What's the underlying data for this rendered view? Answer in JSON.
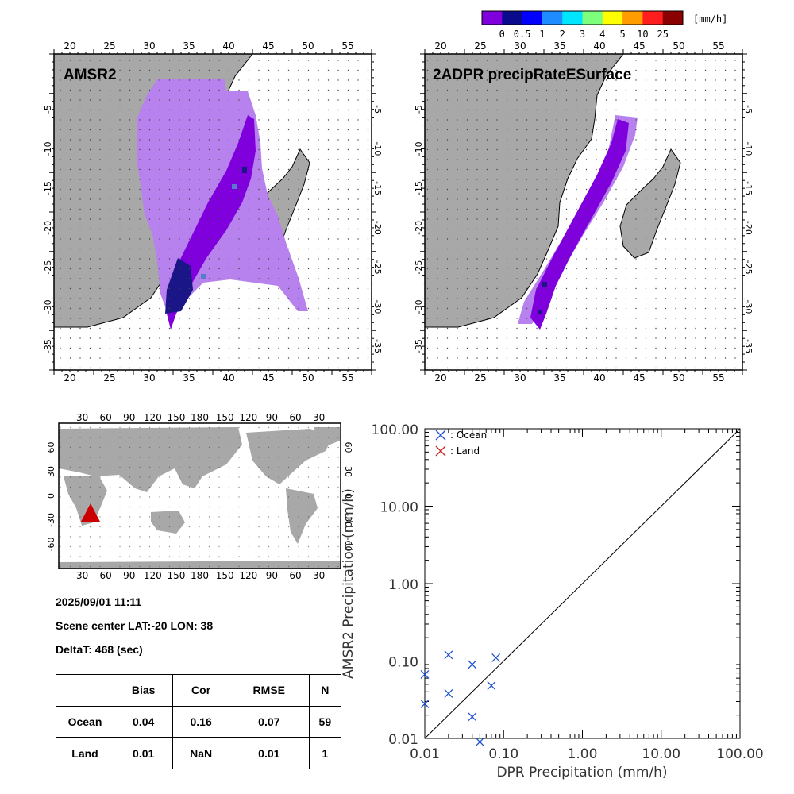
{
  "colorbar": {
    "unit": "[mm/h]",
    "ticks": [
      "0",
      "0.5",
      "1",
      "2",
      "3",
      "4",
      "5",
      "10",
      "25"
    ],
    "colors": [
      "#7f00dd",
      "#0a0a8c",
      "#0000ff",
      "#1e8cff",
      "#00e5ff",
      "#7dff7d",
      "#ffff00",
      "#ff9c00",
      "#ff1e1e",
      "#8b0000"
    ]
  },
  "map_panels": [
    {
      "title": "AMSR2",
      "lon_ticks": [
        "20",
        "25",
        "30",
        "35",
        "40",
        "45",
        "50",
        "55"
      ],
      "lat_ticks": [
        "-5",
        "-10",
        "-15",
        "-20",
        "-25",
        "-30",
        "-35"
      ]
    },
    {
      "title": "2ADPR precipRateESurface",
      "lon_ticks": [
        "20",
        "25",
        "30",
        "35",
        "40",
        "45",
        "50",
        "55"
      ],
      "lat_ticks": [
        "-5",
        "-10",
        "-15",
        "-20",
        "-25",
        "-30",
        "-35"
      ]
    }
  ],
  "world_map": {
    "lon_ticks": [
      "30",
      "60",
      "90",
      "120",
      "150",
      "180",
      "-150",
      "-120",
      "-90",
      "-60",
      "-30"
    ],
    "lat_ticks": [
      "60",
      "30",
      "0",
      "-30",
      "-60"
    ],
    "marker_color": "#cc0000"
  },
  "info": {
    "datetime": "2025/09/01 11:11",
    "scene_center": "Scene center LAT:-20   LON:  38",
    "delta_t": "DeltaT:  468 (sec)"
  },
  "stats_table": {
    "headers": [
      "",
      "Bias",
      "Cor",
      "RMSE",
      "N"
    ],
    "rows": [
      {
        "label": "Ocean",
        "bias": "0.04",
        "cor": "0.16",
        "rmse": "0.07",
        "n": "59"
      },
      {
        "label": "Land",
        "bias": "0.01",
        "cor": "NaN",
        "rmse": "0.01",
        "n": "1"
      }
    ]
  },
  "chart_data": {
    "type": "scatter",
    "xlabel": "DPR Precipitation (mm/h)",
    "ylabel": "AMSR2 Precipitation (mm/h)",
    "xscale": "log",
    "yscale": "log",
    "xlim": [
      0.01,
      100
    ],
    "ylim": [
      0.01,
      100
    ],
    "xticks": [
      "0.01",
      "0.10",
      "1.00",
      "10.00",
      "100.00"
    ],
    "yticks": [
      "0.01",
      "0.10",
      "1.00",
      "10.00",
      "100.00"
    ],
    "reference_line": "1:1",
    "legend": {
      "placement": "top-left",
      "entries": [
        {
          "label": ": Ocean",
          "color": "#1e50d2"
        },
        {
          "label": ": Land",
          "color": "#c81e1e"
        }
      ]
    },
    "series": [
      {
        "name": "Ocean",
        "color": "#1e50d2",
        "points": [
          {
            "x": 0.01,
            "y": 0.067
          },
          {
            "x": 0.01,
            "y": 0.028
          },
          {
            "x": 0.02,
            "y": 0.12
          },
          {
            "x": 0.02,
            "y": 0.038
          },
          {
            "x": 0.04,
            "y": 0.09
          },
          {
            "x": 0.04,
            "y": 0.019
          },
          {
            "x": 0.05,
            "y": 0.009
          },
          {
            "x": 0.07,
            "y": 0.048
          },
          {
            "x": 0.08,
            "y": 0.11
          }
        ]
      },
      {
        "name": "Land",
        "color": "#c81e1e",
        "points": []
      }
    ]
  }
}
